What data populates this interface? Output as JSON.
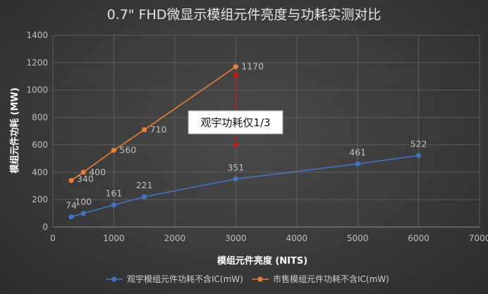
{
  "chart_data": {
    "type": "scatter",
    "title": "0.7\" FHD微显示模组元件亮度与功耗实测对比",
    "xlabel": "模组元件亮度 (NITS)",
    "ylabel": "模组元件功耗 (MW)",
    "xlim": [
      0,
      7000
    ],
    "ylim": [
      0,
      1400
    ],
    "xticks": [
      0,
      1000,
      2000,
      3000,
      4000,
      5000,
      6000,
      7000
    ],
    "yticks": [
      0,
      200,
      400,
      600,
      800,
      1000,
      1200,
      1400
    ],
    "grid": true,
    "legend_position": "bottom",
    "series": [
      {
        "name": "观宇模组元件功耗不含IC(mW)",
        "color": "#4472c4",
        "x": [
          300,
          500,
          1000,
          1500,
          3000,
          5000,
          6000
        ],
        "y": [
          74,
          100,
          161,
          221,
          351,
          461,
          522
        ],
        "labels": [
          "74",
          "100",
          "161",
          "221",
          "351",
          "461",
          "522"
        ]
      },
      {
        "name": "市售模组元件功耗不含IC(mW)",
        "color": "#ed7d31",
        "x": [
          300,
          500,
          1000,
          1500,
          3000
        ],
        "y": [
          340,
          400,
          560,
          710,
          1170
        ],
        "labels": [
          "340",
          "400",
          "560",
          "710",
          "1170"
        ]
      }
    ],
    "annotation": {
      "text": "观宇功耗仅1/3",
      "x": 3000,
      "y_from": 1170,
      "y_to": 540,
      "color": "#ff0000"
    }
  }
}
